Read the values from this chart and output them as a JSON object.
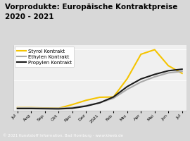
{
  "title": "Vorprodukte: Europäische Kontraktpreise\n2020 - 2021",
  "title_bg": "#f5c400",
  "footer": "© 2021 Kunststoff Information, Bad Homburg - www.kiweb.de",
  "footer_bg": "#888888",
  "x_labels": [
    "Jul",
    "Aug",
    "Sep",
    "Okt",
    "Nov",
    "Dez",
    "2021",
    "Feb",
    "Mrz",
    "Apr",
    "Mai",
    "Jun",
    "Jul"
  ],
  "styrol": [
    20,
    20,
    18,
    16,
    40,
    68,
    88,
    90,
    210,
    370,
    400,
    295,
    245
  ],
  "ethylen": [
    18,
    18,
    17,
    16,
    20,
    33,
    52,
    82,
    140,
    188,
    222,
    248,
    258
  ],
  "propylen": [
    14,
    14,
    13,
    12,
    16,
    30,
    52,
    90,
    158,
    208,
    238,
    262,
    272
  ],
  "styrol_color": "#f5c400",
  "ethylen_color": "#aaaaaa",
  "propylen_color": "#1a1a1a",
  "legend_labels": [
    "Styrol Kontrakt",
    "Ethylen Kontrakt",
    "Propylen Kontrakt"
  ],
  "bg_color": "#d8d8d8",
  "plot_bg": "#f0f0f0",
  "ylim": [
    0,
    430
  ],
  "linewidth": 1.5,
  "title_fontsize": 7.5,
  "legend_fontsize": 5.0,
  "tick_fontsize": 4.5
}
